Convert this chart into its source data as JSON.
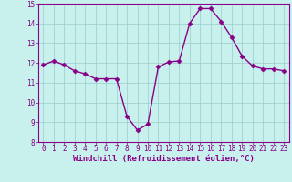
{
  "x": [
    0,
    1,
    2,
    3,
    4,
    5,
    6,
    7,
    8,
    9,
    10,
    11,
    12,
    13,
    14,
    15,
    16,
    17,
    18,
    19,
    20,
    21,
    22,
    23
  ],
  "y": [
    11.9,
    12.1,
    11.9,
    11.6,
    11.45,
    11.2,
    11.2,
    11.2,
    9.3,
    8.6,
    8.9,
    11.8,
    12.05,
    12.1,
    14.0,
    14.75,
    14.75,
    14.1,
    13.3,
    12.35,
    11.85,
    11.7,
    11.7,
    11.6
  ],
  "line_color": "#880088",
  "marker": "D",
  "marker_size": 2.5,
  "bg_color": "#c8f0ec",
  "grid_color": "#99cccc",
  "xlabel": "Windchill (Refroidissement éolien,°C)",
  "xlabel_color": "#880088",
  "tick_color": "#880088",
  "ylim": [
    8,
    15
  ],
  "xlim_min": -0.5,
  "xlim_max": 23.5,
  "yticks": [
    8,
    9,
    10,
    11,
    12,
    13,
    14,
    15
  ],
  "xticks": [
    0,
    1,
    2,
    3,
    4,
    5,
    6,
    7,
    8,
    9,
    10,
    11,
    12,
    13,
    14,
    15,
    16,
    17,
    18,
    19,
    20,
    21,
    22,
    23
  ],
  "spine_color": "#880088",
  "font_size_label": 6.5,
  "font_size_tick": 5.5,
  "linewidth": 1.0
}
